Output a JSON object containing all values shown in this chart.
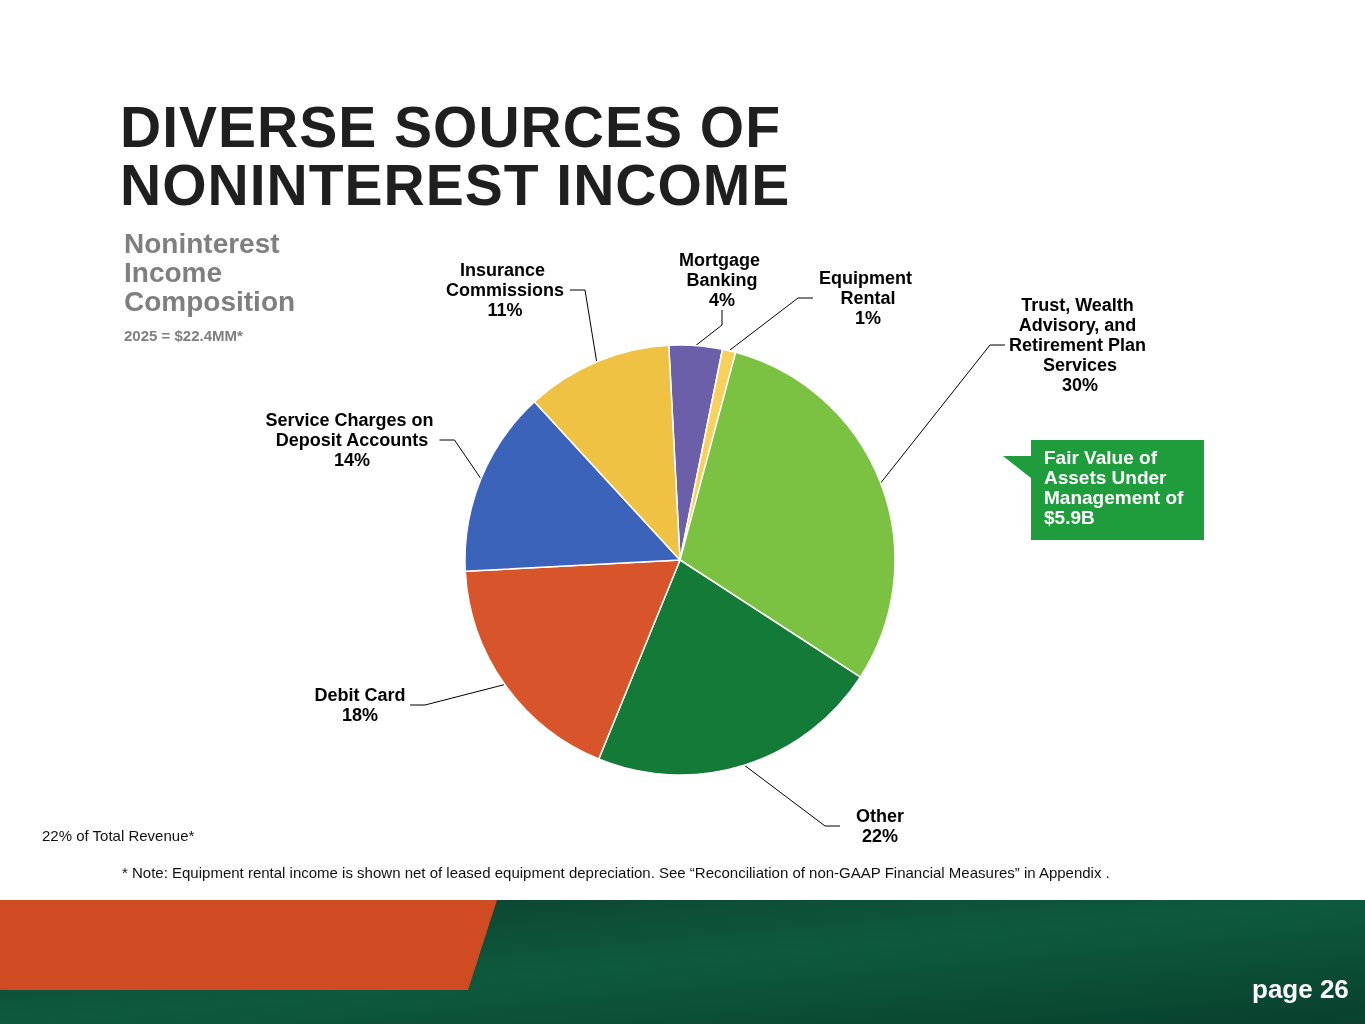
{
  "chart_data": {
    "type": "pie",
    "title": "DIVERSE SOURCES OF NONINTEREST INCOME",
    "subtitle": "Noninterest Income Composition",
    "categories": [
      "Mortgage Banking",
      "Equipment Rental",
      "Trust, Wealth Advisory, and Retirement Plan Services",
      "Other",
      "Debit Card",
      "Service Charges on Deposit Accounts",
      "Insurance Commissions"
    ],
    "values": [
      4,
      1,
      30,
      22,
      18,
      14,
      11
    ],
    "value_labels": [
      "4%",
      "1%",
      "30%",
      "22%",
      "18%",
      "14%",
      "11%"
    ],
    "colors": [
      "#6a5fa8",
      "#f7d15c",
      "#7cc242",
      "#137a38",
      "#d8552b",
      "#3a63b9",
      "#efc243"
    ],
    "annotations": [
      "2025 = $22.4MM*",
      "Fair Value of Assets Under Management of $5.9B",
      "22% of Total Revenue*",
      "* Note: Equipment rental income is shown net of leased equipment depreciation. See “Reconciliation of non-GAAP Financial Measures” in Appendix .",
      "page 26"
    ],
    "legend": false
  }
}
